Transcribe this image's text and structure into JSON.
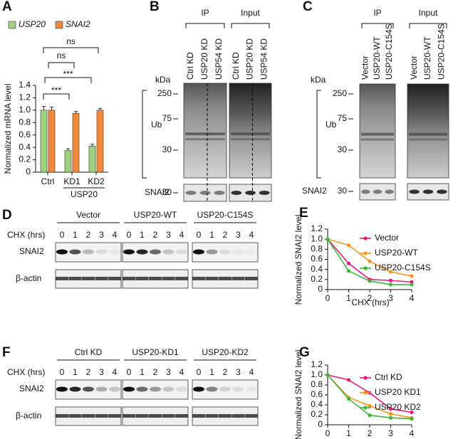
{
  "chart_data": [
    {
      "type": "bar",
      "panel": "A",
      "ylabel": "Normalized mRNA level",
      "categories": [
        "Ctrl",
        "KD1",
        "KD2"
      ],
      "group_label": "USP20",
      "series": [
        {
          "name": "USP20",
          "color": "#9fd17e",
          "values": [
            1.0,
            0.35,
            0.42
          ],
          "errors": [
            0.06,
            0.03,
            0.03
          ]
        },
        {
          "name": "SNAI2",
          "color": "#f08a3a",
          "values": [
            1.0,
            0.95,
            1.0
          ],
          "errors": [
            0.05,
            0.03,
            0.03
          ]
        }
      ],
      "ylim": [
        0,
        1.4
      ],
      "yticks": [
        0,
        0.2,
        0.4,
        0.6,
        0.8,
        {
          "value": 1,
          "label": "1.0"
        },
        1.2,
        1.4
      ],
      "annotations": [
        "ns",
        "ns",
        "***",
        "***"
      ]
    },
    {
      "type": "line",
      "panel": "E",
      "ylabel": "Normalized SNAI2 level",
      "xlabel": "CHX (hrs)",
      "x": [
        0,
        1,
        2,
        3,
        4
      ],
      "xlim": [
        0,
        4
      ],
      "xticks": [
        0,
        1,
        2,
        3,
        4
      ],
      "ylim": [
        0,
        1.2
      ],
      "yticks": [
        0,
        0.2,
        0.4,
        0.6,
        0.8,
        {
          "value": 1,
          "label": "1.0"
        },
        1.2
      ],
      "series": [
        {
          "name": "Vector",
          "color": "#e6197e",
          "values": [
            1.0,
            0.52,
            0.2,
            0.18,
            0.15
          ]
        },
        {
          "name": "USP20-WT",
          "color": "#f7941d",
          "values": [
            1.0,
            0.88,
            0.56,
            0.35,
            0.27
          ]
        },
        {
          "name": "USP20-C154S",
          "color": "#3bb53b",
          "values": [
            1.0,
            0.37,
            0.17,
            0.1,
            0.1
          ]
        }
      ]
    },
    {
      "type": "line",
      "panel": "G",
      "ylabel": "Normalized SNAI2 level",
      "x": [
        0,
        1,
        2,
        3,
        4
      ],
      "xlim": [
        0,
        4
      ],
      "xticks": [
        0,
        1,
        2,
        3,
        4
      ],
      "ylim": [
        0,
        1.2
      ],
      "yticks": [
        0,
        0.2,
        0.4,
        0.6,
        0.8,
        {
          "value": 1,
          "label": "1.0"
        },
        1.2
      ],
      "series": [
        {
          "name": "Ctrl KD",
          "color": "#e6197e",
          "values": [
            1.0,
            0.9,
            0.64,
            0.32,
            0.25
          ]
        },
        {
          "name": "USP20 KD1",
          "color": "#f7941d",
          "values": [
            1.0,
            0.55,
            0.38,
            0.22,
            0.14
          ]
        },
        {
          "name": "USP20 KD2",
          "color": "#3bb53b",
          "values": [
            1.0,
            0.52,
            0.19,
            0.14,
            0.12
          ]
        }
      ]
    }
  ],
  "ip_blots": [
    {
      "panel": "B",
      "groups": [
        {
          "label": "IP",
          "lanes": [
            "Ctrl KD",
            "USP20 KD",
            "USP54 KD"
          ]
        },
        {
          "label": "Input",
          "lanes": [
            "Ctrl KD",
            "USP20 KD",
            "USP54 KD"
          ]
        }
      ],
      "unit": "kDa",
      "markers": [
        250,
        75,
        30
      ],
      "target": "Ub",
      "probe": "SNAI2",
      "probe_marker": 30
    },
    {
      "panel": "C",
      "groups": [
        {
          "label": "IP",
          "lanes": [
            "Vector",
            "USP20-WT",
            "USP20-C154S"
          ]
        },
        {
          "label": "Input",
          "lanes": [
            "Vector",
            "USP20-WT",
            "USP20-C154S"
          ]
        }
      ],
      "unit": "kDa",
      "markers": [
        250,
        75,
        30
      ],
      "target": "Ub",
      "probe": "SNAI2",
      "probe_marker": 30
    }
  ],
  "chx_blots": [
    {
      "panel": "D",
      "groups": [
        "Vector",
        "USP20-WT",
        "USP20-C154S"
      ],
      "time_label": "CHX (hrs)",
      "times": [
        0,
        1,
        2,
        3,
        4
      ],
      "rows": [
        "SNAI2",
        "β-actin"
      ]
    },
    {
      "panel": "F",
      "groups": [
        "Ctrl KD",
        "USP20-KD1",
        "USP20-KD2"
      ],
      "time_label": "CHX (hrs)",
      "times": [
        0,
        1,
        2,
        3,
        4
      ],
      "rows": [
        "SNAI2",
        "β-actin"
      ]
    }
  ]
}
